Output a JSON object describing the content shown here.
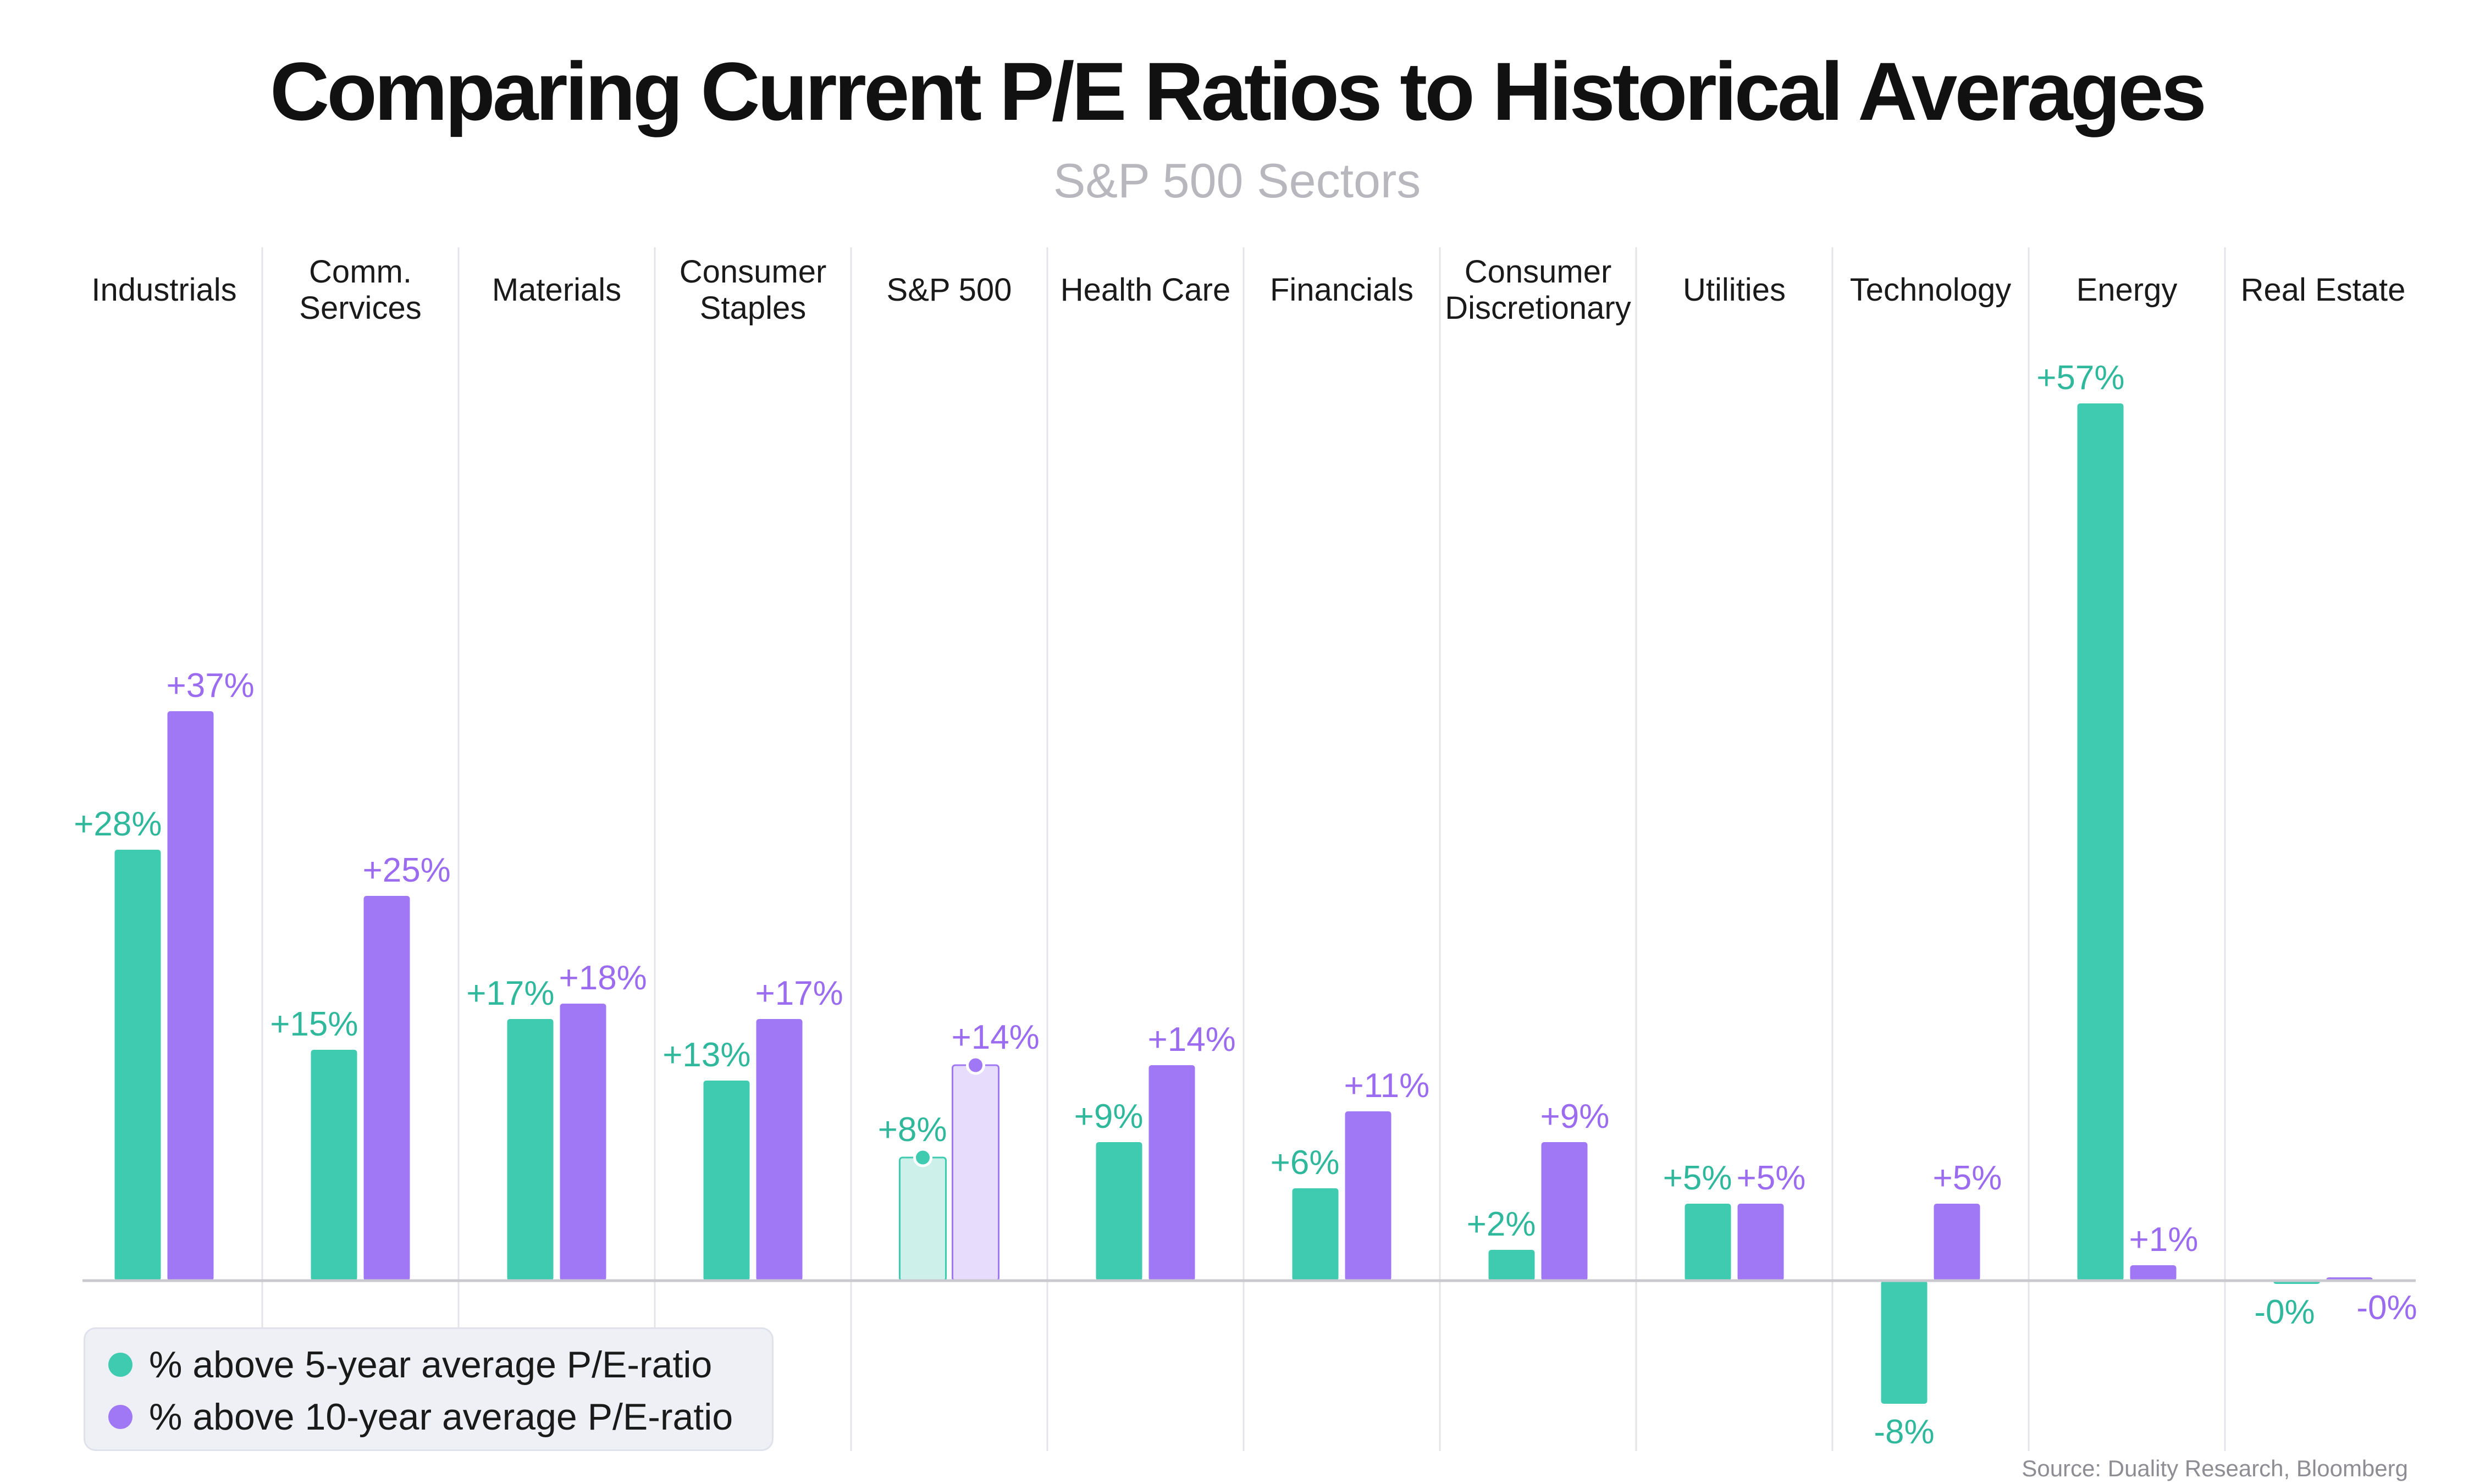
{
  "chart_data": {
    "type": "bar",
    "title": "Comparing Current P/E Ratios to Historical Averages",
    "subtitle": "S&P 500 Sectors",
    "categories": [
      "Industrials",
      "Comm.\nServices",
      "Materials",
      "Consumer\nStaples",
      "S&P 500",
      "Health Care",
      "Financials",
      "Consumer\nDiscretionary",
      "Utilities",
      "Technology",
      "Energy",
      "Real Estate"
    ],
    "series": [
      {
        "name": "% above 5-year average P/E-ratio",
        "color": "#3ecbb0",
        "values": [
          28,
          15,
          17,
          13,
          8,
          9,
          6,
          2,
          5,
          -8,
          57,
          -0.2
        ],
        "labels": [
          "+28%",
          "+15%",
          "+17%",
          "+13%",
          "+8%",
          "+9%",
          "+6%",
          "+2%",
          "+5%",
          "-8%",
          "+57%",
          "-0%"
        ]
      },
      {
        "name": "% above 10-year average P/E-ratio",
        "color": "#a077f5",
        "values": [
          37,
          25,
          18,
          17,
          14,
          14,
          11,
          9,
          5,
          5,
          1,
          0
        ],
        "labels": [
          "+37%",
          "+25%",
          "+18%",
          "+17%",
          "+14%",
          "+14%",
          "+11%",
          "+9%",
          "+5%",
          "+5%",
          "+1%",
          "-0%"
        ]
      }
    ],
    "highlight_category": "S&P 500",
    "highlight_colors": [
      "#cdf1ea",
      "#e8dcfd"
    ],
    "xlabel": "",
    "ylabel": "",
    "ylim": [
      -10,
      60
    ],
    "grid": false,
    "legend_position": "bottom-left"
  },
  "source": "Source: Duality Research, Bloomberg",
  "colors": {
    "teal": "#3ecbb0",
    "purple": "#a077f5",
    "label_teal": "#2fb89c",
    "label_purple": "#9b6cf0"
  }
}
